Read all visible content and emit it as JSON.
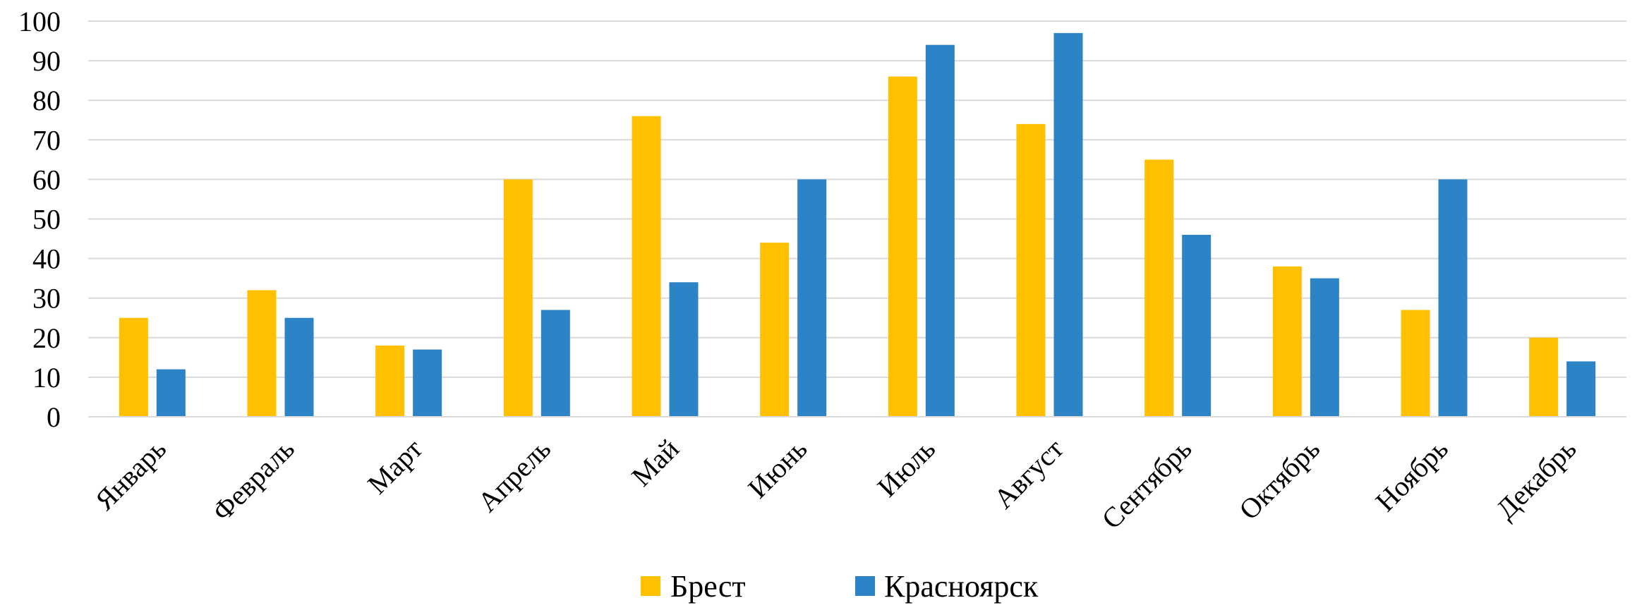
{
  "chart_data": {
    "type": "bar",
    "title": "",
    "xlabel": "",
    "ylabel": "",
    "ylim": [
      0,
      100
    ],
    "yticks": [
      0,
      10,
      20,
      30,
      40,
      50,
      60,
      70,
      80,
      90,
      100
    ],
    "grid": true,
    "legend_position": "bottom",
    "categories": [
      "Январь",
      "Февраль",
      "Март",
      "Апрель",
      "Май",
      "Июнь",
      "Июль",
      "Август",
      "Сентябрь",
      "Октябрь",
      "Ноябрь",
      "Декабрь"
    ],
    "series": [
      {
        "name": "Брест",
        "color": "#FFC000",
        "values": [
          25,
          32,
          18,
          60,
          76,
          44,
          86,
          74,
          65,
          38,
          27,
          20
        ]
      },
      {
        "name": "Красноярск",
        "color": "#2C84C6",
        "values": [
          12,
          25,
          17,
          27,
          34,
          60,
          94,
          97,
          46,
          35,
          60,
          14
        ]
      }
    ]
  }
}
